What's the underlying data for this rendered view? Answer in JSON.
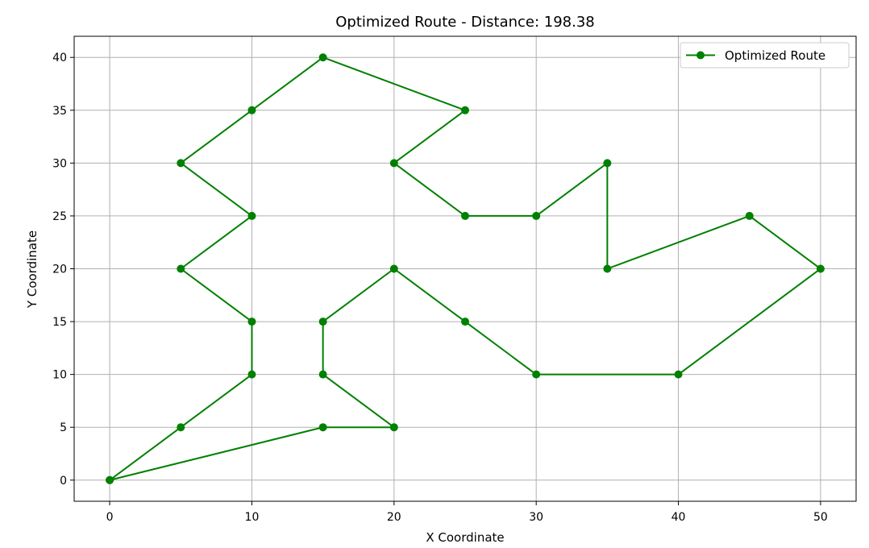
{
  "chart_data": {
    "type": "line",
    "title": "Optimized Route - Distance: 198.38",
    "xlabel": "X Coordinate",
    "ylabel": "Y Coordinate",
    "xlim": [
      -2.5,
      52.5
    ],
    "ylim": [
      -2,
      42
    ],
    "x_ticks": [
      0,
      10,
      20,
      30,
      40,
      50
    ],
    "y_ticks": [
      0,
      5,
      10,
      15,
      20,
      25,
      30,
      35,
      40
    ],
    "grid": true,
    "legend_position": "top-right",
    "colors": {
      "series": "#008000",
      "grid": "#b0b0b0",
      "axis": "#000000"
    },
    "series": [
      {
        "name": "Optimized Route",
        "marker": "circle",
        "points": [
          {
            "x": 0,
            "y": 0
          },
          {
            "x": 5,
            "y": 5
          },
          {
            "x": 10,
            "y": 10
          },
          {
            "x": 10,
            "y": 15
          },
          {
            "x": 5,
            "y": 20
          },
          {
            "x": 10,
            "y": 25
          },
          {
            "x": 5,
            "y": 30
          },
          {
            "x": 10,
            "y": 35
          },
          {
            "x": 15,
            "y": 40
          },
          {
            "x": 25,
            "y": 35
          },
          {
            "x": 20,
            "y": 30
          },
          {
            "x": 25,
            "y": 25
          },
          {
            "x": 30,
            "y": 25
          },
          {
            "x": 35,
            "y": 30
          },
          {
            "x": 35,
            "y": 20
          },
          {
            "x": 45,
            "y": 25
          },
          {
            "x": 50,
            "y": 20
          },
          {
            "x": 40,
            "y": 10
          },
          {
            "x": 30,
            "y": 10
          },
          {
            "x": 25,
            "y": 15
          },
          {
            "x": 20,
            "y": 20
          },
          {
            "x": 15,
            "y": 15
          },
          {
            "x": 15,
            "y": 10
          },
          {
            "x": 20,
            "y": 5
          },
          {
            "x": 15,
            "y": 5
          },
          {
            "x": 0,
            "y": 0
          }
        ]
      }
    ]
  }
}
